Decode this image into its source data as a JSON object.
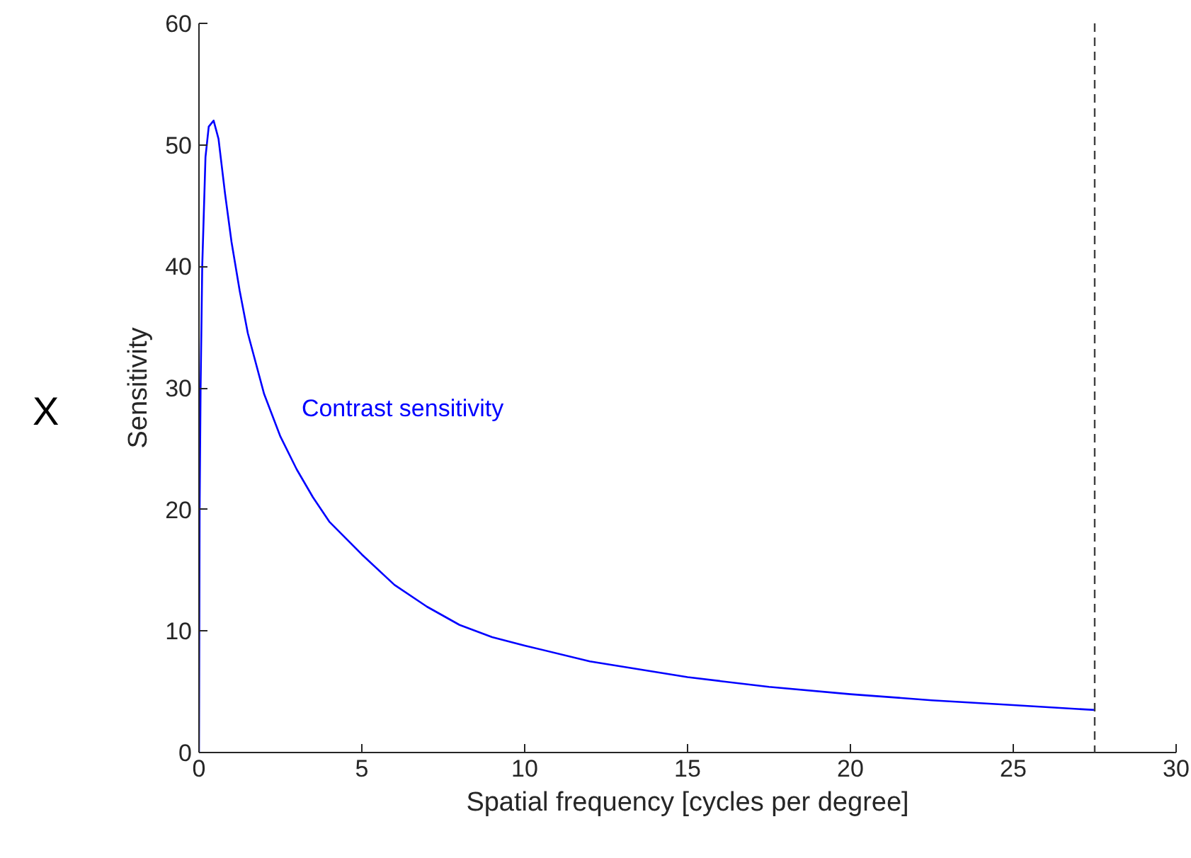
{
  "chart_data": {
    "type": "line",
    "xlabel": "Spatial frequency [cycles per degree]",
    "ylabel": "Sensitivity",
    "xlim": [
      0,
      30
    ],
    "ylim": [
      0,
      60
    ],
    "xticks": [
      0,
      5,
      10,
      15,
      20,
      25,
      30
    ],
    "yticks": [
      0,
      10,
      20,
      30,
      40,
      50,
      60
    ],
    "grid": false,
    "marker": "none",
    "line_style": "solid",
    "series": [
      {
        "name": "Contrast sensitivity",
        "color": "#0000ff",
        "x": [
          0,
          0.02,
          0.05,
          0.1,
          0.2,
          0.3,
          0.45,
          0.6,
          0.8,
          1,
          1.25,
          1.5,
          2,
          2.5,
          3,
          3.5,
          4,
          5,
          6,
          7,
          8,
          9,
          10,
          12,
          15,
          17.5,
          20,
          22.5,
          25,
          27.5
        ],
        "values": [
          0,
          20,
          30,
          40,
          49,
          51.5,
          52,
          50.5,
          46,
          42,
          38,
          34.5,
          29.5,
          26,
          23.3,
          21,
          19,
          16.3,
          13.8,
          12,
          10.5,
          9.5,
          8.8,
          7.5,
          6.2,
          5.4,
          4.8,
          4.3,
          3.9,
          3.5
        ]
      }
    ],
    "ref_lines": [
      {
        "axis": "x",
        "value": 27.5,
        "color": "#404040",
        "line_style": "dashed"
      }
    ],
    "annotations": [
      "X"
    ]
  }
}
